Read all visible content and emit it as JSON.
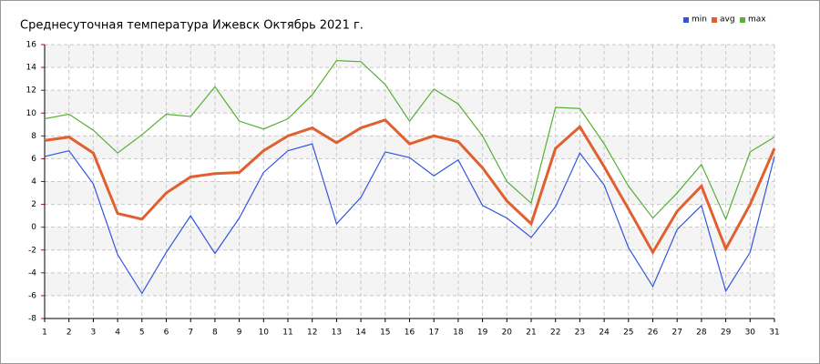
{
  "chart_data": {
    "type": "line",
    "title": "Среднесуточная температура Ижевск  Октябрь 2021 г.",
    "x": [
      1,
      2,
      3,
      4,
      5,
      6,
      7,
      8,
      9,
      10,
      11,
      12,
      13,
      14,
      15,
      16,
      17,
      18,
      19,
      20,
      21,
      22,
      23,
      24,
      25,
      26,
      27,
      28,
      29,
      30,
      31
    ],
    "xlim": [
      1,
      31
    ],
    "xticks": [
      1,
      2,
      3,
      4,
      5,
      6,
      7,
      8,
      9,
      10,
      11,
      12,
      13,
      14,
      15,
      16,
      17,
      18,
      19,
      20,
      21,
      22,
      23,
      24,
      25,
      26,
      27,
      28,
      29,
      30,
      31
    ],
    "ylim": [
      -8,
      16
    ],
    "yticks": [
      -8,
      -6,
      -4,
      -2,
      0,
      2,
      4,
      6,
      8,
      10,
      12,
      14,
      16
    ],
    "grid": true,
    "legend": "top-right",
    "series": [
      {
        "name": "min",
        "color": "#3355dd",
        "values": [
          6.2,
          6.7,
          3.8,
          -2.4,
          -5.8,
          -2.2,
          1.0,
          -2.3,
          0.8,
          4.8,
          6.7,
          7.3,
          0.3,
          2.6,
          6.6,
          6.1,
          4.5,
          5.9,
          1.9,
          0.8,
          -0.9,
          1.8,
          6.5,
          3.7,
          -1.8,
          -5.2,
          -0.2,
          1.9,
          -5.6,
          -2.2,
          6.2
        ]
      },
      {
        "name": "avg",
        "color": "#e06030",
        "values": [
          7.6,
          7.9,
          6.5,
          1.2,
          0.7,
          3.0,
          4.4,
          4.7,
          4.8,
          6.7,
          8.0,
          8.7,
          7.4,
          8.7,
          9.4,
          7.3,
          8.0,
          7.5,
          5.2,
          2.3,
          0.3,
          6.9,
          8.8,
          5.3,
          1.6,
          -2.2,
          1.4,
          3.6,
          -1.9,
          2.0,
          6.9
        ]
      },
      {
        "name": "max",
        "color": "#55b033",
        "values": [
          9.5,
          9.9,
          8.5,
          6.5,
          8.1,
          9.9,
          9.7,
          12.3,
          9.3,
          8.6,
          9.5,
          11.6,
          14.6,
          14.5,
          12.5,
          9.3,
          12.1,
          10.8,
          8.0,
          4.0,
          2.1,
          10.5,
          10.4,
          7.3,
          3.6,
          0.8,
          3.0,
          5.5,
          0.7,
          6.6,
          7.9
        ]
      }
    ]
  }
}
